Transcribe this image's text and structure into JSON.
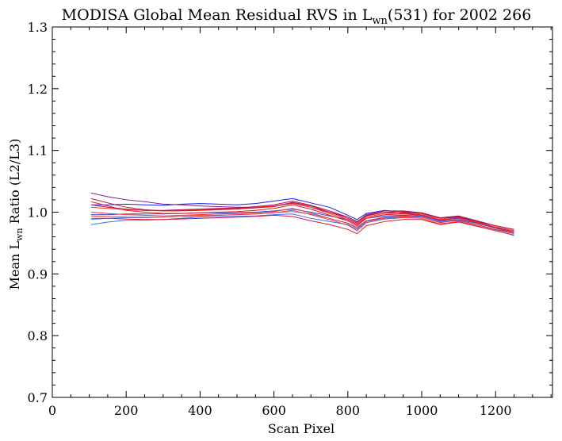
{
  "chart_data": {
    "type": "line",
    "title": {
      "prefix": "MODISA Global Mean Residual RVS in L",
      "subscript": "wn",
      "suffix": "(531) for 2002 266"
    },
    "xlabel": "Scan Pixel",
    "ylabel": {
      "prefix": "Mean L",
      "subscript": "wn",
      "suffix": " Ratio (L2/L3)"
    },
    "xlim": [
      0,
      1354
    ],
    "ylim": [
      0.7,
      1.3
    ],
    "x_ticks": [
      0,
      200,
      400,
      600,
      800,
      1000,
      1200
    ],
    "x_tick_labels": [
      "0",
      "200",
      "400",
      "600",
      "800",
      "1000",
      "1200"
    ],
    "y_ticks": [
      0.7,
      0.8,
      0.9,
      1.0,
      1.1,
      1.2,
      1.3
    ],
    "y_tick_labels": [
      "0.7",
      "0.8",
      "0.9",
      "1.0",
      "1.1",
      "1.2",
      "1.3"
    ],
    "grid": false,
    "x": [
      105,
      150,
      200,
      250,
      300,
      350,
      400,
      450,
      500,
      550,
      600,
      650,
      700,
      750,
      800,
      825,
      850,
      900,
      950,
      1000,
      1050,
      1100,
      1150,
      1200,
      1250
    ],
    "series": [
      {
        "color": "#1a1aee",
        "values": [
          1.012,
          1.012,
          1.013,
          1.012,
          1.011,
          1.013,
          1.014,
          1.013,
          1.012,
          1.014,
          1.018,
          1.022,
          1.015,
          1.008,
          0.995,
          0.988,
          0.998,
          1.003,
          1.0,
          0.998,
          0.99,
          0.992,
          0.985,
          0.975,
          0.968
        ]
      },
      {
        "color": "#3f6fff",
        "values": [
          0.98,
          0.984,
          0.987,
          0.987,
          0.988,
          0.99,
          0.992,
          0.993,
          0.993,
          0.994,
          0.996,
          0.997,
          0.99,
          0.985,
          0.98,
          0.972,
          0.985,
          0.99,
          0.992,
          0.992,
          0.985,
          0.986,
          0.98,
          0.972,
          0.965
        ]
      },
      {
        "color": "#2d4de8",
        "values": [
          0.996,
          0.996,
          0.997,
          0.997,
          0.997,
          0.998,
          0.999,
          0.999,
          0.999,
          1.0,
          1.002,
          1.005,
          1.0,
          0.994,
          0.988,
          0.98,
          0.99,
          0.994,
          0.995,
          0.994,
          0.986,
          0.988,
          0.982,
          0.974,
          0.966
        ]
      },
      {
        "color": "#5a8aff",
        "values": [
          0.988,
          0.99,
          0.991,
          0.991,
          0.992,
          0.993,
          0.995,
          0.995,
          0.996,
          0.997,
          0.999,
          1.001,
          0.997,
          0.99,
          0.982,
          0.976,
          0.986,
          0.991,
          0.993,
          0.993,
          0.984,
          0.987,
          0.98,
          0.971,
          0.962
        ]
      },
      {
        "color": "#8a1a9a",
        "values": [
          1.031,
          1.025,
          1.02,
          1.017,
          1.013,
          1.012,
          1.01,
          1.009,
          1.008,
          1.008,
          1.01,
          1.014,
          1.008,
          1.0,
          0.992,
          0.985,
          0.995,
          1.0,
          0.998,
          0.996,
          0.988,
          0.99,
          0.983,
          0.976,
          0.97
        ]
      },
      {
        "color": "#e01a1a",
        "values": [
          1.017,
          1.01,
          1.003,
          1.0,
          0.998,
          0.998,
          0.999,
          1.0,
          1.001,
          1.003,
          1.006,
          1.012,
          1.005,
          0.995,
          0.986,
          0.978,
          0.99,
          0.996,
          0.997,
          0.995,
          0.987,
          0.99,
          0.983,
          0.975,
          0.968
        ]
      },
      {
        "color": "#ff2a2a",
        "values": [
          1.008,
          1.006,
          1.004,
          1.003,
          1.002,
          1.003,
          1.004,
          1.005,
          1.006,
          1.008,
          1.01,
          1.015,
          1.008,
          0.998,
          0.988,
          0.98,
          0.992,
          0.998,
          0.999,
          0.996,
          0.988,
          0.991,
          0.984,
          0.976,
          0.97
        ]
      },
      {
        "color": "#d41a3a",
        "values": [
          0.99,
          0.99,
          0.989,
          0.988,
          0.988,
          0.989,
          0.99,
          0.991,
          0.992,
          0.993,
          0.995,
          0.993,
          0.986,
          0.98,
          0.972,
          0.965,
          0.978,
          0.985,
          0.988,
          0.988,
          0.98,
          0.984,
          0.977,
          0.97,
          0.963
        ]
      },
      {
        "color": "#ee3030",
        "values": [
          1.0,
          0.998,
          0.996,
          0.995,
          0.994,
          0.995,
          0.996,
          0.997,
          0.998,
          0.999,
          1.001,
          1.006,
          0.999,
          0.99,
          0.982,
          0.974,
          0.986,
          0.992,
          0.994,
          0.992,
          0.983,
          0.987,
          0.98,
          0.972,
          0.966
        ]
      },
      {
        "color": "#c4142e",
        "values": [
          1.022,
          1.015,
          1.008,
          1.004,
          1.002,
          1.002,
          1.003,
          1.004,
          1.005,
          1.007,
          1.009,
          1.016,
          1.01,
          1.0,
          0.99,
          0.982,
          0.994,
          1.0,
          1.001,
          0.998,
          0.99,
          0.993,
          0.985,
          0.978,
          0.972
        ]
      },
      {
        "color": "#f03a3a",
        "values": [
          0.994,
          0.993,
          0.992,
          0.992,
          0.992,
          0.993,
          0.994,
          0.995,
          0.996,
          0.997,
          0.999,
          1.003,
          0.996,
          0.988,
          0.979,
          0.97,
          0.983,
          0.989,
          0.991,
          0.99,
          0.981,
          0.985,
          0.978,
          0.97,
          0.963
        ]
      },
      {
        "color": "#b01a50",
        "values": [
          1.012,
          1.008,
          1.005,
          1.003,
          1.003,
          1.004,
          1.005,
          1.006,
          1.007,
          1.009,
          1.012,
          1.018,
          1.011,
          1.002,
          0.992,
          0.984,
          0.996,
          1.002,
          1.002,
          0.999,
          0.991,
          0.994,
          0.986,
          0.978,
          0.972
        ]
      }
    ]
  }
}
